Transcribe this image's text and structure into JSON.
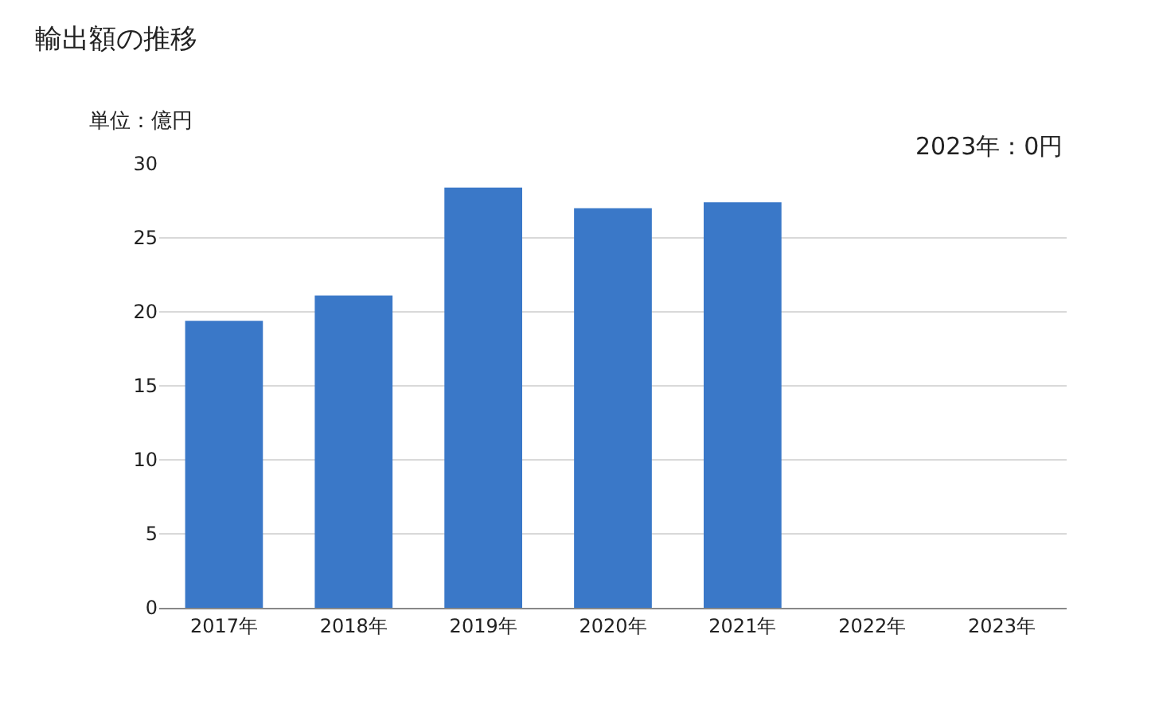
{
  "chart_data": {
    "type": "bar",
    "title": "輸出額の推移",
    "ylabel": "単位：億円",
    "categories": [
      "2017年",
      "2018年",
      "2019年",
      "2020年",
      "2021年",
      "2022年",
      "2023年"
    ],
    "values": [
      19.4,
      21.1,
      28.4,
      27.0,
      27.4,
      0,
      0
    ],
    "color": "#3a78c8",
    "ylim": [
      0,
      30
    ],
    "yticks": [
      0,
      5,
      10,
      15,
      20,
      25,
      30
    ],
    "grid": "y",
    "annotations": [
      "2023年：0円"
    ]
  }
}
